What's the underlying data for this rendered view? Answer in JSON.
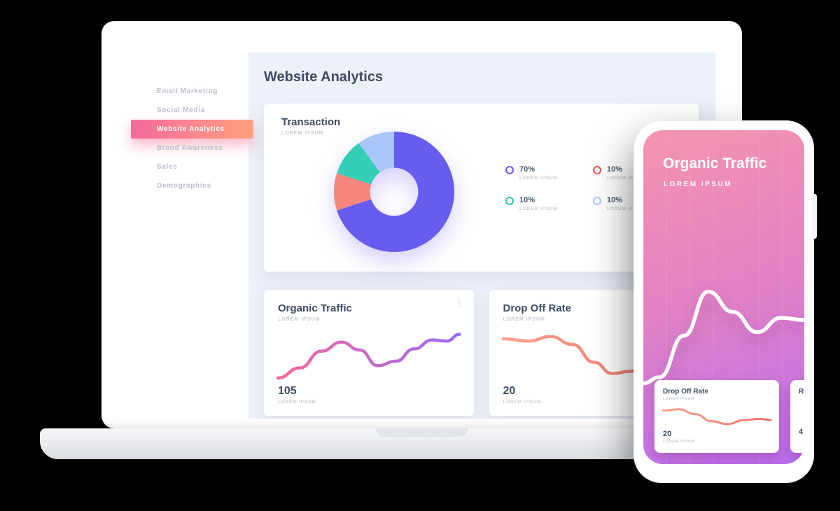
{
  "canvas": {
    "bg": "#000000"
  },
  "sidebar": {
    "items": [
      {
        "label": "Email Marketing",
        "active": false
      },
      {
        "label": "Social Media",
        "active": false
      },
      {
        "label": "Website Analytics",
        "active": true
      },
      {
        "label": "Brand Awareness",
        "active": false
      },
      {
        "label": "Sales",
        "active": false
      },
      {
        "label": "Demographics",
        "active": false
      }
    ],
    "active_gradient": [
      "#f56b9d",
      "#ffa07f"
    ]
  },
  "main": {
    "title": "Website Analytics",
    "transaction_card": {
      "title": "Transaction",
      "subtitle": "LOREM IPSUM",
      "legend": [
        {
          "value": "70%",
          "label": "LOREM IPSUM",
          "color": "#675bf0"
        },
        {
          "value": "10%",
          "label": "LOREM IPSUM",
          "color": "#f4524a"
        },
        {
          "value": "10%",
          "label": "LOREM IPSUM",
          "color": "#21cbb4"
        },
        {
          "value": "10%",
          "label": "LOREM IPSUM",
          "color": "#a9c6f8"
        }
      ]
    },
    "organic_card": {
      "title": "Organic Traffic",
      "subtitle": "LOREM IPSUM",
      "value": "105",
      "value_label": "LOREM IPSUM"
    },
    "dropoff_card": {
      "title": "Drop Off Rate",
      "subtitle": "LOREM IPSUM",
      "value": "20",
      "value_label": "LOREM IPSUM"
    }
  },
  "phone": {
    "title": "Organic Traffic",
    "subtitle": "LOREM IPSUM",
    "gradient": [
      "#f493ae",
      "#bb6ef1"
    ],
    "cards": [
      {
        "title": "Drop Off Rate",
        "subtitle": "LOREM IPSUM",
        "value": "20",
        "value_label": "LOREM IPSUM"
      },
      {
        "title": "Re",
        "value": "4"
      }
    ]
  },
  "icons": {
    "kebab": "⋮"
  },
  "chart_data": [
    {
      "id": "transaction-donut",
      "type": "pie",
      "title": "Transaction",
      "donut": true,
      "inner_ratio": 0.4,
      "start_angle": "top",
      "direction": "clockwise",
      "labels": [
        "70%",
        "10%",
        "10%",
        "10%"
      ],
      "values": [
        70,
        10,
        10,
        10
      ],
      "colors": [
        "#675bf0",
        "#f5877c",
        "#34cfb6",
        "#a9c6f8"
      ],
      "legend_position": "right"
    },
    {
      "id": "organic-line",
      "type": "line",
      "title": "Organic Traffic",
      "displayed_value": 105,
      "stroke": [
        "#f56a9e",
        "#9a6bf3"
      ],
      "points": [
        [
          0,
          10
        ],
        [
          12,
          28
        ],
        [
          24,
          58
        ],
        [
          35,
          74
        ],
        [
          45,
          60
        ],
        [
          55,
          32
        ],
        [
          65,
          40
        ],
        [
          75,
          62
        ],
        [
          85,
          78
        ],
        [
          93,
          76
        ],
        [
          100,
          88
        ]
      ],
      "x_range": [
        0,
        100
      ],
      "y_range": [
        0,
        100
      ],
      "axes": "hidden"
    },
    {
      "id": "dropoff-line",
      "type": "line",
      "title": "Drop Off Rate",
      "displayed_value": 20,
      "stroke": [
        "#f8a38c",
        "#f0756e"
      ],
      "points": [
        [
          0,
          80
        ],
        [
          14,
          76
        ],
        [
          26,
          84
        ],
        [
          38,
          70
        ],
        [
          50,
          38
        ],
        [
          60,
          18
        ],
        [
          70,
          22
        ],
        [
          80,
          42
        ],
        [
          90,
          48
        ],
        [
          100,
          42
        ]
      ],
      "x_range": [
        0,
        100
      ],
      "y_range": [
        0,
        100
      ],
      "axes": "hidden"
    },
    {
      "id": "phone-wave",
      "type": "line",
      "title": "Organic Traffic (phone)",
      "stroke": "#ffffff",
      "points": [
        [
          0,
          5
        ],
        [
          10,
          10
        ],
        [
          25,
          45
        ],
        [
          40,
          82
        ],
        [
          55,
          65
        ],
        [
          70,
          48
        ],
        [
          85,
          60
        ],
        [
          100,
          58
        ]
      ],
      "axes": "hidden"
    },
    {
      "id": "phone-mini-line",
      "type": "line",
      "title": "Drop Off Rate (phone)",
      "displayed_value": 20,
      "stroke": [
        "#f8a38c",
        "#f0756e"
      ],
      "points": [
        [
          0,
          75
        ],
        [
          15,
          80
        ],
        [
          30,
          60
        ],
        [
          45,
          30
        ],
        [
          60,
          18
        ],
        [
          75,
          35
        ],
        [
          90,
          40
        ],
        [
          100,
          35
        ]
      ],
      "axes": "hidden"
    }
  ]
}
